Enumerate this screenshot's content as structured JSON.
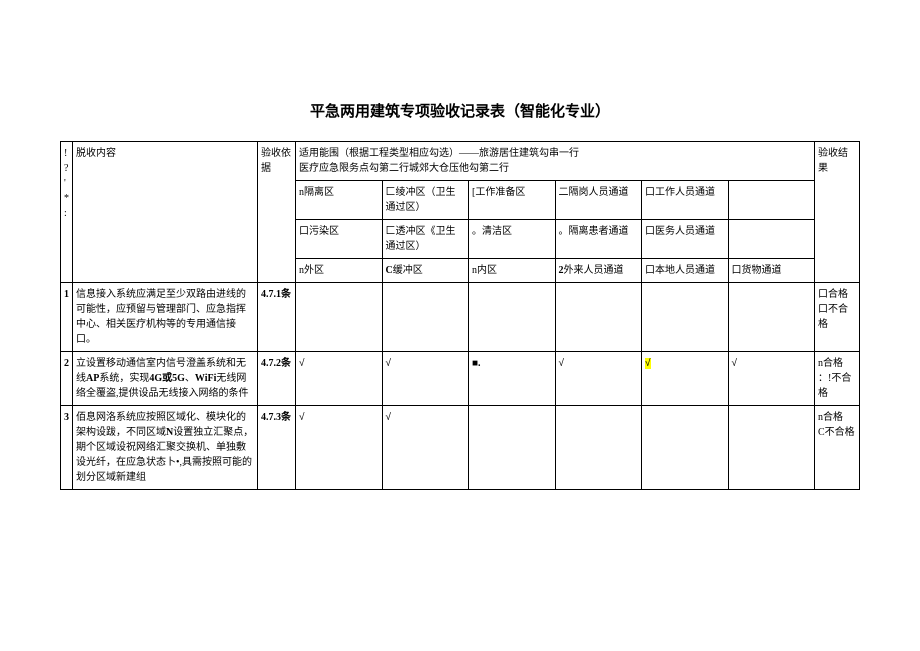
{
  "title": "平急两用建筑专项验收记录表（智能化专业）",
  "header": {
    "col_num": "!?'\n*:",
    "col_content": "脱收内容",
    "col_basis": "验收依据",
    "col_scope": "适用能围（根据工程类型相应勾选）——旅游居住建筑勾串一行\n医疗应急限务点勾第二行城郊大仓压他勾第二行",
    "col_result": "验收结果"
  },
  "scope_headers": {
    "r1": [
      "n隔离区",
      "匚绫冲区（卫生通过区）",
      "[工作准备区",
      "二隔岗人员通道",
      "口工作人员通道",
      ""
    ],
    "r2": [
      "口污染区",
      "匚透冲区《卫生通过区）",
      "。清洁区",
      "。隔离患者通道",
      "口医务人员通道",
      ""
    ],
    "r3": [
      "n外区",
      "C缓冲区",
      "n内区",
      "2外来人员通道",
      "口本地人员通道",
      "口货物通道"
    ]
  },
  "rows": [
    {
      "num": "1",
      "content": "信息接入系统应满足至少双路由进线的可能性，应预留与管理部门、应急指挥中心、相关医疗机构等的专用通信接口。",
      "basis": "4.7.1条",
      "cells": [
        "",
        "",
        "",
        "",
        "",
        ""
      ],
      "result": "口合格\n口不合格"
    },
    {
      "num": "2",
      "content": "立设置移动通信室内信号澄盖系统和无线AP系统，实现4G或5G、WiFi无线网络全覆盗,提供设品无线接入网络的条件",
      "basis": "4.7.2条",
      "cells": [
        "√",
        "√",
        "■.",
        "√",
        "√",
        "√"
      ],
      "result": "n合格\n：!不合格",
      "yellow_col": 4
    },
    {
      "num": "3",
      "content": "佰息网洛系统应按照区域化、模块化的架构设跋，不同区域N设置独立汇聚点，期个区域设祝网络汇聚交换机、单独敷设光纤，在应急状态卜•,具需按照可能的划分区域新建组",
      "basis": "4.7.3条",
      "cells": [
        "√",
        "√",
        "",
        "",
        "",
        ""
      ],
      "result": "n合格\nC不合格"
    }
  ]
}
